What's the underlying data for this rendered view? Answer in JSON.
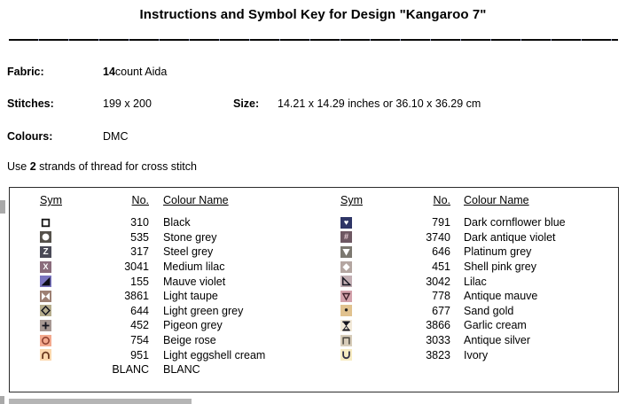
{
  "title": "Instructions and Symbol Key for Design \"Kangaroo 7\"",
  "info": {
    "fabric_label": "Fabric:",
    "fabric_value_bold": "14",
    "fabric_value_rest": " count Aida",
    "stitches_label": "Stitches:",
    "stitches_value": "199 x 200",
    "size_label": "Size:",
    "size_value": "14.21 x 14.29 inches or 36.10 x 36.29 cm",
    "colours_label": "Colours:",
    "colours_value": "DMC",
    "note_prefix": "Use ",
    "note_bold": "2",
    "note_suffix": " strands of thread for cross stitch"
  },
  "key_table": {
    "headers": {
      "sym": "Sym",
      "no": "No.",
      "name": "Colour Name"
    },
    "left_rows": [
      {
        "no": "310",
        "name": "Black",
        "sym": {
          "glyph": "open-square",
          "bg": "#ffffff",
          "fg": "#161616"
        }
      },
      {
        "no": "535",
        "name": "Stone grey",
        "sym": {
          "glyph": "filled-circle",
          "bg": "#55514b",
          "fg": "#ffffff"
        }
      },
      {
        "no": "317",
        "name": "Steel grey",
        "sym": {
          "glyph": "letter-z",
          "bg": "#4a4a57",
          "fg": "#ffffff"
        }
      },
      {
        "no": "3041",
        "name": "Medium lilac",
        "sym": {
          "glyph": "cross-x",
          "bg": "#8a6c7c",
          "fg": "#ffffff"
        }
      },
      {
        "no": "155",
        "name": "Mauve violet",
        "sym": {
          "glyph": "triangle-lower-right",
          "bg": "#7a74c0",
          "fg": "#0c0c16"
        }
      },
      {
        "no": "3861",
        "name": "Light taupe",
        "sym": {
          "glyph": "bowtie",
          "bg": "#9d8073",
          "fg": "#ffffff"
        }
      },
      {
        "no": "644",
        "name": "Light green grey",
        "sym": {
          "glyph": "diamond-outline",
          "bg": "#b5ac8c",
          "fg": "#15151f"
        }
      },
      {
        "no": "452",
        "name": "Pigeon grey",
        "sym": {
          "glyph": "plus",
          "bg": "#a79893",
          "fg": "#15151f"
        }
      },
      {
        "no": "754",
        "name": "Beige rose",
        "sym": {
          "glyph": "circle-outline",
          "bg": "#f3a98e",
          "fg": "#8a3b2c"
        }
      },
      {
        "no": "951",
        "name": "Light eggshell cream",
        "sym": {
          "glyph": "cap",
          "bg": "#fbd8ad",
          "fg": "#6b3a1f"
        }
      },
      {
        "no": "BLANC",
        "name": "BLANC",
        "sym": {
          "glyph": "blank",
          "bg": "#ffffff",
          "fg": "#ffffff"
        }
      }
    ],
    "right_rows": [
      {
        "no": "791",
        "name": "Dark cornflower blue",
        "sym": {
          "glyph": "heart",
          "bg": "#2e3566",
          "fg": "#ffffff"
        }
      },
      {
        "no": "3740",
        "name": "Dark antique violet",
        "sym": {
          "glyph": "hash",
          "bg": "#6e5862",
          "fg": "#ead0d8"
        }
      },
      {
        "no": "646",
        "name": "Platinum grey",
        "sym": {
          "glyph": "triangle-down",
          "bg": "#7c7870",
          "fg": "#ffffff"
        }
      },
      {
        "no": "451",
        "name": "Shell pink grey",
        "sym": {
          "glyph": "diamond-filled",
          "bg": "#b4a6a1",
          "fg": "#ffffff"
        }
      },
      {
        "no": "3042",
        "name": "Lilac",
        "sym": {
          "glyph": "triangle-lower-left-outline",
          "bg": "#c2aeb3",
          "fg": "#15151f"
        }
      },
      {
        "no": "778",
        "name": "Antique mauve",
        "sym": {
          "glyph": "triangle-down-outline",
          "bg": "#d3a2ab",
          "fg": "#41222c"
        }
      },
      {
        "no": "677",
        "name": "Sand gold",
        "sym": {
          "glyph": "dot",
          "bg": "#e1c28f",
          "fg": "#222222"
        }
      },
      {
        "no": "3866",
        "name": "Garlic cream",
        "sym": {
          "glyph": "hourglass",
          "bg": "#f2e9d8",
          "fg": "#15151f"
        }
      },
      {
        "no": "3033",
        "name": "Antique silver",
        "sym": {
          "glyph": "pi",
          "bg": "#d7ccb9",
          "fg": "#4a463e"
        }
      },
      {
        "no": "3823",
        "name": "Ivory",
        "sym": {
          "glyph": "cup",
          "bg": "#f7ebc1",
          "fg": "#333046"
        }
      }
    ]
  }
}
